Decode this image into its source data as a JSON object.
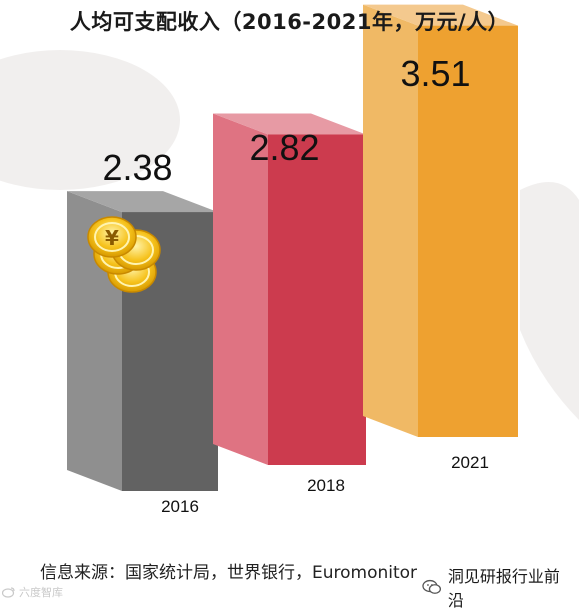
{
  "chart_data": {
    "type": "bar",
    "title": "人均可支配收入（2016-2021年，万元/人）",
    "categories": [
      "2016",
      "2018",
      "2021"
    ],
    "values": [
      2.38,
      2.82,
      3.51
    ],
    "value_labels": [
      "2.38",
      "2.82",
      "3.51"
    ],
    "colors": {
      "2016": {
        "front": "#626262",
        "side": "#8f8f8f",
        "top": "#a6a6a6"
      },
      "2018": {
        "front": "#cc3b4e",
        "side": "#df7382",
        "top": "#e79aa4"
      },
      "2021": {
        "front": "#eea130",
        "side": "#f0b965",
        "top": "#f4c98e"
      }
    },
    "grid": false,
    "legend": "none"
  },
  "source": "信息来源：国家统计局，世界银行，Euromonitor",
  "watermark_right": "洞见研报行业前沿",
  "watermark_left": "六度智库",
  "icons": [
    "coin-stack-icon",
    "wechat-icon",
    "weibo-icon"
  ]
}
